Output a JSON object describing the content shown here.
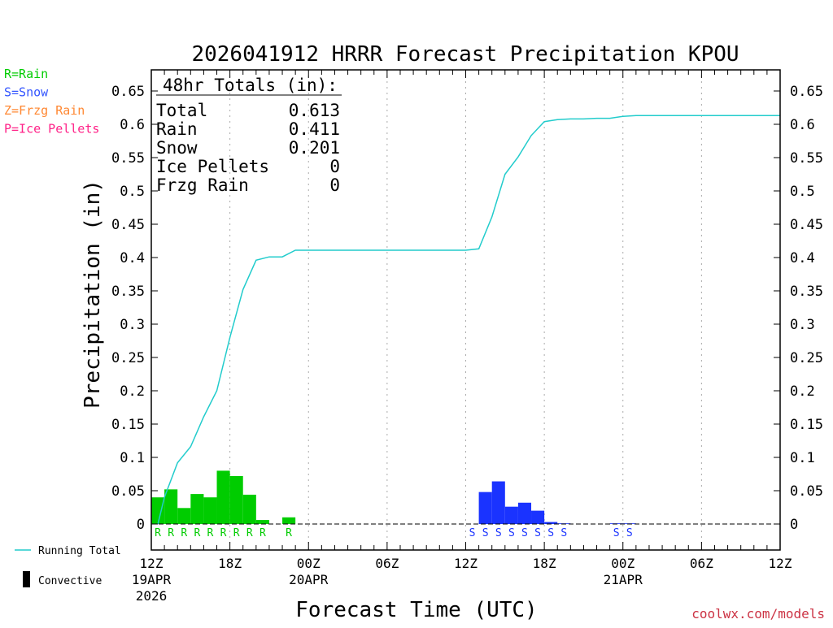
{
  "chart_data": {
    "type": "bar",
    "title": "2026041912 HRRR Forecast Precipitation KPOU",
    "xlabel": "Forecast Time (UTC)",
    "ylabel": "Precipitation (in)",
    "ylim": [
      -0.05,
      0.675
    ],
    "yticks": [
      0,
      0.05,
      0.1,
      0.15,
      0.2,
      0.25,
      0.3,
      0.35,
      0.4,
      0.45,
      0.5,
      0.55,
      0.6,
      0.65
    ],
    "ytick_labels": [
      "0",
      "0.05",
      "0.1",
      "0.15",
      "0.2",
      "0.25",
      "0.3",
      "0.35",
      "0.4",
      "0.45",
      "0.5",
      "0.55",
      "0.6",
      "0.65"
    ],
    "xlim_hours": [
      0,
      48
    ],
    "xticks": [
      {
        "hour": 0,
        "lines": [
          "12Z",
          "19APR",
          "2026"
        ]
      },
      {
        "hour": 6,
        "lines": [
          "18Z"
        ]
      },
      {
        "hour": 12,
        "lines": [
          "00Z",
          "20APR"
        ]
      },
      {
        "hour": 18,
        "lines": [
          "06Z"
        ]
      },
      {
        "hour": 24,
        "lines": [
          "12Z"
        ]
      },
      {
        "hour": 30,
        "lines": [
          "18Z"
        ]
      },
      {
        "hour": 36,
        "lines": [
          "00Z",
          "21APR"
        ]
      },
      {
        "hour": 42,
        "lines": [
          "06Z"
        ]
      },
      {
        "hour": 48,
        "lines": [
          "12Z"
        ]
      }
    ],
    "grid_hours": [
      6,
      12,
      18,
      24,
      30,
      36,
      42
    ],
    "hourly_bars": [
      {
        "hour": 1,
        "value": 0.04,
        "type": "rain"
      },
      {
        "hour": 2,
        "value": 0.052,
        "type": "rain"
      },
      {
        "hour": 3,
        "value": 0.024,
        "type": "rain"
      },
      {
        "hour": 4,
        "value": 0.045,
        "type": "rain"
      },
      {
        "hour": 5,
        "value": 0.04,
        "type": "rain"
      },
      {
        "hour": 6,
        "value": 0.08,
        "type": "rain"
      },
      {
        "hour": 7,
        "value": 0.072,
        "type": "rain"
      },
      {
        "hour": 8,
        "value": 0.044,
        "type": "rain"
      },
      {
        "hour": 9,
        "value": 0.006,
        "type": "rain"
      },
      {
        "hour": 11,
        "value": 0.01,
        "type": "rain"
      },
      {
        "hour": 26,
        "value": 0.048,
        "type": "snow"
      },
      {
        "hour": 27,
        "value": 0.064,
        "type": "snow"
      },
      {
        "hour": 28,
        "value": 0.026,
        "type": "snow"
      },
      {
        "hour": 29,
        "value": 0.032,
        "type": "snow"
      },
      {
        "hour": 30,
        "value": 0.02,
        "type": "snow"
      },
      {
        "hour": 31,
        "value": 0.003,
        "type": "snow"
      },
      {
        "hour": 32,
        "value": 0.001,
        "type": "snow"
      },
      {
        "hour": 36,
        "value": 0.001,
        "type": "snow"
      },
      {
        "hour": 37,
        "value": 0.0005,
        "type": "snow"
      }
    ],
    "ptype_markers": [
      {
        "hour": 1,
        "letter": "R"
      },
      {
        "hour": 2,
        "letter": "R"
      },
      {
        "hour": 3,
        "letter": "R"
      },
      {
        "hour": 4,
        "letter": "R"
      },
      {
        "hour": 5,
        "letter": "R"
      },
      {
        "hour": 6,
        "letter": "R"
      },
      {
        "hour": 7,
        "letter": "R"
      },
      {
        "hour": 8,
        "letter": "R"
      },
      {
        "hour": 9,
        "letter": "R"
      },
      {
        "hour": 11,
        "letter": "R"
      },
      {
        "hour": 25,
        "letter": "S"
      },
      {
        "hour": 26,
        "letter": "S"
      },
      {
        "hour": 27,
        "letter": "S"
      },
      {
        "hour": 28,
        "letter": "S"
      },
      {
        "hour": 29,
        "letter": "S"
      },
      {
        "hour": 30,
        "letter": "S"
      },
      {
        "hour": 31,
        "letter": "S"
      },
      {
        "hour": 32,
        "letter": "S"
      },
      {
        "hour": 36,
        "letter": "S"
      },
      {
        "hour": 37,
        "letter": "S"
      }
    ],
    "running_total": {
      "name": "Running Total",
      "points": [
        [
          0.5,
          0.0
        ],
        [
          1,
          0.04
        ],
        [
          2,
          0.092
        ],
        [
          3,
          0.116
        ],
        [
          4,
          0.161
        ],
        [
          5,
          0.2
        ],
        [
          6,
          0.28
        ],
        [
          7,
          0.352
        ],
        [
          8,
          0.396
        ],
        [
          9,
          0.401
        ],
        [
          10,
          0.401
        ],
        [
          11,
          0.411
        ],
        [
          24,
          0.411
        ],
        [
          25,
          0.413
        ],
        [
          26,
          0.461
        ],
        [
          27,
          0.525
        ],
        [
          28,
          0.551
        ],
        [
          29,
          0.583
        ],
        [
          30,
          0.604
        ],
        [
          31,
          0.607
        ],
        [
          32,
          0.608
        ],
        [
          33,
          0.608
        ],
        [
          34,
          0.609
        ],
        [
          35,
          0.609
        ],
        [
          36,
          0.612
        ],
        [
          37,
          0.613
        ],
        [
          48,
          0.613
        ]
      ]
    },
    "totals_box": {
      "header": "48hr Totals (in):",
      "rows": [
        {
          "label": "Total",
          "value": "0.613"
        },
        {
          "label": "Rain",
          "value": "0.411"
        },
        {
          "label": "Snow",
          "value": "0.201"
        },
        {
          "label": "Ice Pellets",
          "value": "0"
        },
        {
          "label": "Frzg Rain",
          "value": "0"
        }
      ]
    },
    "ptype_legend": [
      {
        "text": "R=Rain",
        "color": "#00cc00"
      },
      {
        "text": "S=Snow",
        "color": "#3355ff"
      },
      {
        "text": "Z=Frzg Rain",
        "color": "#ff8833"
      },
      {
        "text": "P=Ice Pellets",
        "color": "#ff2288"
      }
    ],
    "series_legend": [
      {
        "text": "Running Total",
        "color": "#22cccc"
      },
      {
        "text": "Convective",
        "color": "#000000"
      }
    ],
    "colors": {
      "rain": "#00cc00",
      "snow": "#1a33ff",
      "running_total": "#22cccc",
      "frame": "#000000",
      "grid": "#aaaaaa",
      "credit": "#cc3344"
    },
    "credit": "coolwx.com/models"
  }
}
